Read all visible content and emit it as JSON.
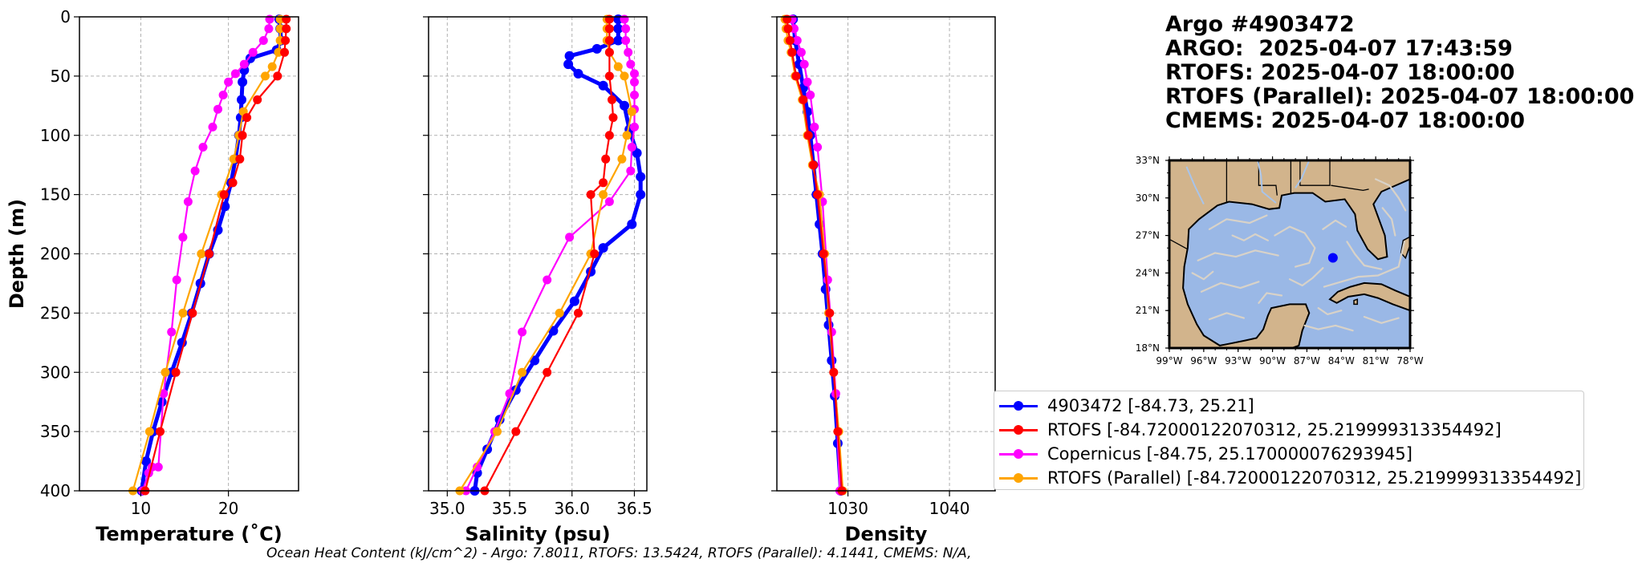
{
  "info": {
    "title": "Argo #4903472",
    "argo_time": "ARGO:  2025-04-07 17:43:59",
    "rtofs_time": "RTOFS: 2025-04-07 18:00:00",
    "rtofs_parallel_time": "RTOFS (Parallel): 2025-04-07 18:00:00",
    "cmems_time": "CMEMS: 2025-04-07 18:00:00"
  },
  "legend": {
    "argo": "4903472 [-84.73, 25.21]",
    "rtofs": "RTOFS [-84.72000122070312, 25.219999313354492]",
    "copernicus": "Copernicus [-84.75, 25.170000076293945]",
    "rtofs_parallel": "RTOFS (Parallel) [-84.72000122070312, 25.219999313354492]"
  },
  "footer": {
    "ohc": "Ocean Heat Content (kJ/cm^2) - Argo: 7.8011,  RTOFS: 13.5424,  RTOFS (Parallel): 4.1441,  CMEMS: N/A,"
  },
  "colors": {
    "argo": "#0000ff",
    "rtofs": "#ff0000",
    "copernicus": "#ff00ff",
    "rtofs_parallel": "#ffa500",
    "land": "#d2b48c",
    "ocean": "#9ab8e6",
    "grid": "#b0b0b0"
  },
  "chart_data": [
    {
      "type": "line",
      "xlabel": "Temperature (˚C)",
      "ylabel": "Depth (m)",
      "xlim": [
        3,
        28
      ],
      "ylim": [
        400,
        0
      ],
      "xticks": [
        "10",
        "20"
      ],
      "xtick_values": [
        10,
        20
      ],
      "yticks": [
        "0",
        "50",
        "100",
        "150",
        "200",
        "250",
        "300",
        "350",
        "400"
      ],
      "ytick_values": [
        0,
        50,
        100,
        150,
        200,
        250,
        300,
        350,
        400
      ],
      "grid": true,
      "series": [
        {
          "name": "4903472 [-84.73, 25.21]",
          "key": "argo",
          "x": [
            25.8,
            25.9,
            26.0,
            25.5,
            22.5,
            21.8,
            21.6,
            21.5,
            21.4,
            21.2,
            20.8,
            20.3,
            19.6,
            18.8,
            17.8,
            16.8,
            15.8,
            14.7,
            13.5,
            12.4,
            11.4,
            10.6,
            10.1
          ],
          "y": [
            2,
            10,
            20,
            28,
            35,
            45,
            55,
            70,
            85,
            100,
            120,
            140,
            160,
            180,
            200,
            225,
            250,
            275,
            300,
            325,
            350,
            375,
            400
          ]
        },
        {
          "name": "RTOFS [-84.72000122070312, 25.219999313354492]",
          "key": "rtofs",
          "x": [
            26.6,
            26.6,
            26.5,
            26.4,
            25.6,
            23.3,
            22.1,
            21.6,
            21.3,
            20.5,
            19.5,
            17.8,
            15.9,
            14.0,
            12.2,
            10.5
          ],
          "y": [
            2,
            10,
            20,
            30,
            50,
            70,
            85,
            100,
            120,
            140,
            150,
            200,
            250,
            300,
            350,
            400
          ]
        },
        {
          "name": "Copernicus [-84.75, 25.170000076293945]",
          "key": "copernicus",
          "x": [
            24.7,
            24.6,
            24.0,
            22.8,
            21.8,
            20.8,
            20.0,
            19.4,
            18.8,
            18.2,
            17.1,
            16.2,
            15.4,
            14.8,
            14.1,
            13.5,
            12.6,
            12.0,
            11.3,
            10.9,
            10.2
          ],
          "y": [
            2,
            10,
            20,
            30,
            40,
            48,
            55,
            66,
            78,
            93,
            110,
            130,
            156,
            186,
            222,
            266,
            318,
            380,
            380,
            385,
            400
          ]
        },
        {
          "name": "RTOFS (Parallel) [-84.72000122070312, 25.219999313354492]",
          "key": "rtofs_parallel",
          "x": [
            25.9,
            25.9,
            25.9,
            25.7,
            25.0,
            24.2,
            21.7,
            21.2,
            20.6,
            19.2,
            16.9,
            14.8,
            12.8,
            11.0,
            9.1
          ],
          "y": [
            2,
            10,
            20,
            30,
            42,
            50,
            80,
            100,
            120,
            150,
            200,
            250,
            300,
            350,
            400
          ]
        }
      ]
    },
    {
      "type": "line",
      "xlabel": "Salinity (psu)",
      "ylabel": "",
      "xlim": [
        34.85,
        36.6
      ],
      "ylim": [
        400,
        0
      ],
      "xticks": [
        "35.0",
        "35.5",
        "36.0",
        "36.5"
      ],
      "xtick_values": [
        35.0,
        35.5,
        36.0,
        36.5
      ],
      "yticks": [],
      "ytick_values": [
        0,
        50,
        100,
        150,
        200,
        250,
        300,
        350,
        400
      ],
      "grid": true,
      "series": [
        {
          "name": "4903472 [-84.73, 25.21]",
          "key": "argo",
          "x": [
            36.37,
            36.37,
            36.37,
            36.2,
            35.98,
            35.97,
            36.05,
            36.25,
            36.42,
            36.46,
            36.52,
            36.55,
            36.55,
            36.48,
            36.25,
            36.15,
            36.02,
            35.85,
            35.7,
            35.55,
            35.42,
            35.32,
            35.24,
            35.22
          ],
          "y": [
            2,
            10,
            20,
            27,
            33,
            40,
            48,
            58,
            75,
            95,
            115,
            135,
            150,
            175,
            195,
            215,
            240,
            265,
            290,
            315,
            340,
            365,
            385,
            400
          ]
        },
        {
          "name": "RTOFS [-84.72000122070312, 25.219999313354492]",
          "key": "rtofs",
          "x": [
            36.3,
            36.3,
            36.3,
            36.3,
            36.3,
            36.32,
            36.33,
            36.3,
            36.27,
            36.25,
            36.15,
            36.18,
            36.05,
            35.8,
            35.55,
            35.3
          ],
          "y": [
            2,
            10,
            20,
            30,
            50,
            70,
            85,
            100,
            120,
            140,
            150,
            200,
            250,
            300,
            350,
            400
          ]
        },
        {
          "name": "Copernicus [-84.75, 25.170000076293945]",
          "key": "copernicus",
          "x": [
            36.42,
            36.43,
            36.43,
            36.45,
            36.47,
            36.5,
            36.5,
            36.5,
            36.5,
            36.5,
            36.48,
            36.47,
            36.3,
            35.98,
            35.8,
            35.6,
            35.5,
            35.38,
            35.24,
            35.15
          ],
          "y": [
            2,
            10,
            20,
            30,
            40,
            48,
            55,
            66,
            78,
            93,
            110,
            130,
            156,
            186,
            222,
            266,
            318,
            350,
            380,
            400
          ]
        },
        {
          "name": "RTOFS (Parallel) [-84.72000122070312, 25.219999313354492]",
          "key": "rtofs_parallel",
          "x": [
            36.28,
            36.28,
            36.28,
            36.3,
            36.37,
            36.42,
            36.48,
            36.44,
            36.4,
            36.25,
            36.15,
            35.9,
            35.6,
            35.4,
            35.1
          ],
          "y": [
            2,
            10,
            20,
            30,
            42,
            50,
            80,
            100,
            120,
            150,
            200,
            250,
            300,
            350,
            400
          ]
        }
      ]
    },
    {
      "type": "line",
      "xlabel": "Density",
      "ylabel": "",
      "xlim": [
        1023,
        1044.5
      ],
      "ylim": [
        400,
        0
      ],
      "xticks": [
        "1030",
        "1040"
      ],
      "xtick_values": [
        1030,
        1040
      ],
      "yticks": [],
      "ytick_values": [
        0,
        50,
        100,
        150,
        200,
        250,
        300,
        350,
        400
      ],
      "grid": true,
      "series": [
        {
          "name": "4903472 [-84.73, 25.21]",
          "key": "argo",
          "x": [
            1024.6,
            1024.8,
            1025.2,
            1025.6,
            1026.0,
            1026.3,
            1026.6,
            1026.9,
            1027.2,
            1027.5,
            1027.8,
            1028.1,
            1028.4,
            1028.7,
            1029.0,
            1029.3
          ],
          "y": [
            2,
            20,
            40,
            60,
            80,
            100,
            125,
            150,
            175,
            200,
            230,
            260,
            290,
            320,
            360,
            400
          ]
        },
        {
          "name": "RTOFS [-84.72000122070312, 25.219999313354492]",
          "key": "rtofs",
          "x": [
            1024.0,
            1024.1,
            1024.3,
            1024.5,
            1024.9,
            1025.6,
            1026.1,
            1026.6,
            1027.0,
            1027.6,
            1028.2,
            1028.6,
            1029.0,
            1029.4
          ],
          "y": [
            2,
            10,
            20,
            30,
            50,
            70,
            100,
            125,
            150,
            200,
            250,
            300,
            350,
            400
          ]
        },
        {
          "name": "Copernicus [-84.75, 25.170000076293945]",
          "key": "copernicus",
          "x": [
            1024.5,
            1024.7,
            1025.0,
            1025.4,
            1025.7,
            1026.0,
            1026.3,
            1026.7,
            1027.0,
            1027.5,
            1028.0,
            1028.4,
            1028.8,
            1029.2
          ],
          "y": [
            2,
            10,
            20,
            30,
            40,
            55,
            66,
            93,
            110,
            156,
            222,
            266,
            318,
            400
          ]
        },
        {
          "name": "RTOFS (Parallel) [-84.72000122070312, 25.219999313354492]",
          "key": "rtofs_parallel",
          "x": [
            1023.8,
            1023.9,
            1024.1,
            1024.4,
            1024.8,
            1025.5,
            1026.0,
            1026.5,
            1027.2,
            1027.7,
            1028.1,
            1028.6,
            1029.1,
            1029.5
          ],
          "y": [
            2,
            10,
            20,
            30,
            50,
            70,
            100,
            125,
            150,
            200,
            250,
            300,
            350,
            400
          ]
        }
      ]
    },
    {
      "type": "map",
      "lon_ticks": [
        "99°W",
        "96°W",
        "93°W",
        "90°W",
        "87°W",
        "84°W",
        "81°W",
        "78°W"
      ],
      "lon_values": [
        -99,
        -96,
        -93,
        -90,
        -87,
        -84,
        -81,
        -78
      ],
      "lat_ticks": [
        "33°N",
        "30°N",
        "27°N",
        "24°N",
        "21°N",
        "18°N"
      ],
      "lat_values": [
        33,
        30,
        27,
        24,
        21,
        18
      ],
      "lon_range": [
        -99,
        -78
      ],
      "lat_range": [
        18,
        33
      ],
      "marker": {
        "lon": -84.73,
        "lat": 25.21
      }
    }
  ]
}
